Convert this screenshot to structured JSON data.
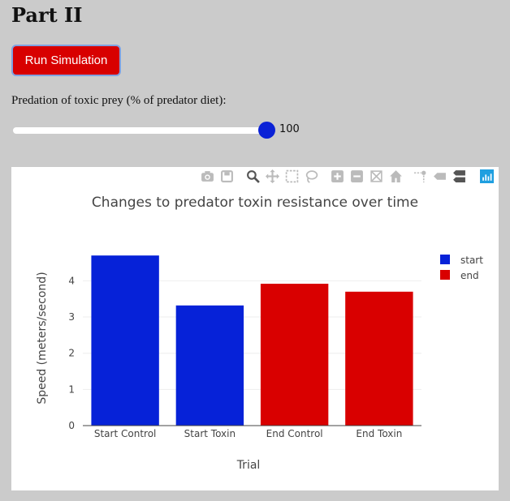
{
  "page": {
    "heading": "Part II",
    "run_button_label": "Run Simulation",
    "slider": {
      "label": "Predation of toxic prey (% of predator diet):",
      "value": 100,
      "min": 0,
      "max": 100,
      "display": "100"
    }
  },
  "modebar_icons": [
    "camera-icon",
    "save-icon",
    "zoom-icon",
    "pan-icon",
    "box-select-icon",
    "lasso-icon",
    "zoom-in-icon",
    "zoom-out-icon",
    "autoscale-icon",
    "reset-axes-icon",
    "spike-lines-icon",
    "hover-closest-icon",
    "hover-compare-icon",
    "plotly-logo-icon"
  ],
  "colors": {
    "start": "#0622d8",
    "end": "#d90000",
    "run_button": "#d80000",
    "slider_thumb": "#0b22d6",
    "background": "#cbcbcb"
  },
  "chart_data": {
    "type": "bar",
    "title": "Changes to predator toxin resistance over time",
    "xlabel": "Trial",
    "ylabel": "Speed (meters/second)",
    "categories": [
      "Start Control",
      "Start Toxin",
      "End Control",
      "End Toxin"
    ],
    "series": [
      {
        "name": "start",
        "x": [
          "Start Control",
          "Start Toxin"
        ],
        "values": [
          4.7,
          3.32
        ]
      },
      {
        "name": "end",
        "x": [
          "End Control",
          "End Toxin"
        ],
        "values": [
          3.92,
          3.7
        ]
      }
    ],
    "yticks": [
      0,
      1,
      2,
      3,
      4
    ],
    "ylim": [
      0,
      4.95
    ],
    "legend": "top-right",
    "grid": true
  }
}
